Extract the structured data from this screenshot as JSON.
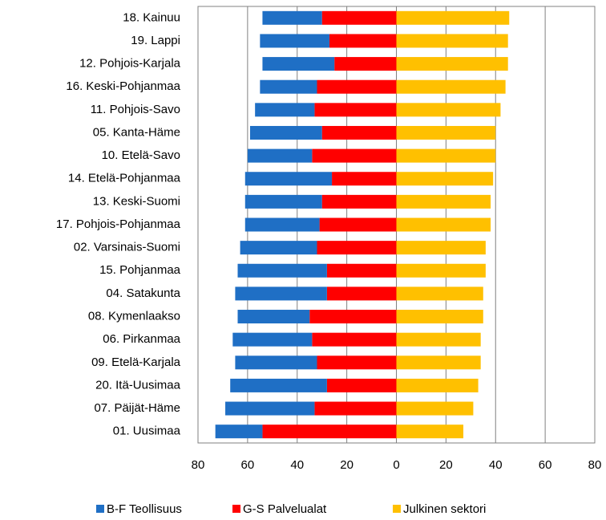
{
  "chart_data": {
    "type": "bar",
    "orientation": "horizontal",
    "stacked": true,
    "categories": [
      "18. Kainuu",
      "19. Lappi",
      "12. Pohjois-Karjala",
      "16. Keski-Pohjanmaa",
      "11. Pohjois-Savo",
      "05. Kanta-Häme",
      "10. Etelä-Savo",
      "14. Etelä-Pohjanmaa",
      "13. Keski-Suomi",
      "17. Pohjois-Pohjanmaa",
      "02. Varsinais-Suomi",
      "15. Pohjanmaa",
      "04. Satakunta",
      "08. Kymenlaakso",
      "06. Pirkanmaa",
      "09. Etelä-Karjala",
      "20. Itä-Uusimaa",
      "07. Päijät-Häme",
      "01. Uusimaa"
    ],
    "series": [
      {
        "name": "B-F Teollisuus",
        "color": "#1f6fc5",
        "values": [
          -24,
          -28,
          -29,
          -23,
          -24,
          -29,
          -26,
          -35,
          -31,
          -30,
          -31,
          -36,
          -37,
          -29,
          -32,
          -33,
          -39,
          -36,
          -19
        ]
      },
      {
        "name": "G-S Palvelualat",
        "color": "#ff0000",
        "values": [
          -30,
          -27,
          -25,
          -32,
          -33,
          -30,
          -34,
          -26,
          -30,
          -31,
          -32,
          -28,
          -28,
          -35,
          -34,
          -32,
          -28,
          -33,
          -54
        ]
      },
      {
        "name": "Julkinen sektori",
        "color": "#ffc000",
        "values": [
          45.5,
          45,
          45,
          44,
          42,
          40,
          40,
          39,
          38,
          38,
          36,
          36,
          35,
          35,
          34,
          34,
          33,
          31,
          27
        ]
      }
    ],
    "xlim": [
      -80,
      80
    ],
    "xticks": [
      {
        "value": -80,
        "label": "80"
      },
      {
        "value": -60,
        "label": "60"
      },
      {
        "value": -40,
        "label": "40"
      },
      {
        "value": -20,
        "label": "20"
      },
      0,
      20,
      40,
      60,
      80
    ],
    "grid": true,
    "legend": "bottom"
  }
}
